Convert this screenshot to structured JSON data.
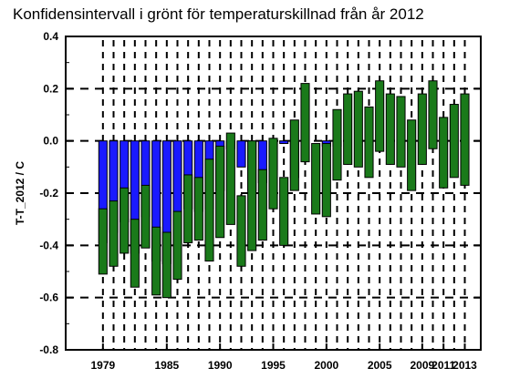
{
  "chart_data": {
    "type": "bar",
    "title": "Konfidensintervall i grönt för temperaturskillnad från år 2012",
    "xlabel": "",
    "ylabel": "T-T_2012 / C",
    "xlim": [
      1975.5,
      2014.5
    ],
    "ylim": [
      -0.8,
      0.4
    ],
    "yticks": [
      -0.8,
      -0.6,
      -0.4,
      -0.2,
      0.0,
      0.2,
      0.4
    ],
    "ytick_labels": [
      "-0.8",
      "-0.6",
      "-0.4",
      "-0.2",
      "0.0",
      "0.2",
      "0.4"
    ],
    "xticks": [
      1979,
      1985,
      1990,
      1995,
      2000,
      2005,
      2009,
      2011,
      2013
    ],
    "xtick_labels": [
      "1979",
      "1985",
      "1990",
      "1995",
      "2000",
      "2005",
      "2009",
      "2011",
      "2013"
    ],
    "grid": true,
    "colors": {
      "difference": "#1a1aff",
      "interval": "#1a7a1a",
      "edge": "#000000"
    },
    "series": [
      {
        "kind": "difference",
        "x": [
          1979,
          1980,
          1981,
          1982,
          1983,
          1984,
          1985,
          1986,
          1987,
          1988,
          1989,
          1990,
          1991,
          1992,
          1993,
          1994,
          1995,
          1996,
          1997,
          1998,
          1999,
          2000,
          2001,
          2002,
          2003,
          2004,
          2005,
          2006,
          2007,
          2008,
          2009,
          2010,
          2011,
          2012,
          2013
        ],
        "values": [
          -0.39,
          -0.35,
          -0.31,
          -0.43,
          -0.29,
          -0.46,
          -0.47,
          -0.4,
          -0.26,
          -0.27,
          -0.26,
          -0.19,
          -0.03,
          -0.1,
          -0.19,
          -0.16,
          -0.11,
          -0.01,
          -0.14,
          0.0,
          0.0,
          -0.02,
          -0.02,
          0.0,
          0.0,
          0.0,
          0.0,
          0.0,
          0.0,
          0.0,
          0.0,
          0.0,
          0.0,
          0.0,
          0.0
        ]
      },
      {
        "kind": "interval",
        "x": [
          1979,
          1980,
          1981,
          1982,
          1983,
          1984,
          1985,
          1986,
          1987,
          1988,
          1989,
          1990,
          1991,
          1992,
          1993,
          1994,
          1995,
          1996,
          1997,
          1998,
          1999,
          2000,
          2001,
          2002,
          2003,
          2004,
          2005,
          2006,
          2007,
          2008,
          2009,
          2010,
          2011,
          2012,
          2013
        ],
        "low": [
          -0.51,
          -0.48,
          -0.43,
          -0.56,
          -0.41,
          -0.59,
          -0.6,
          -0.53,
          -0.39,
          -0.38,
          -0.46,
          -0.37,
          -0.32,
          -0.48,
          -0.42,
          -0.38,
          -0.26,
          -0.4,
          -0.19,
          -0.08,
          -0.28,
          -0.29,
          -0.15,
          -0.09,
          -0.1,
          -0.14,
          -0.04,
          -0.09,
          -0.1,
          -0.19,
          -0.09,
          -0.03,
          -0.18,
          -0.14,
          -0.17
        ],
        "high": [
          -0.26,
          -0.23,
          -0.18,
          -0.3,
          -0.17,
          -0.33,
          -0.35,
          -0.27,
          -0.13,
          -0.14,
          -0.07,
          -0.02,
          0.03,
          -0.21,
          0.0,
          -0.11,
          0.01,
          -0.14,
          0.08,
          0.22,
          -0.01,
          -0.01,
          0.12,
          0.18,
          0.19,
          0.13,
          0.23,
          0.18,
          0.17,
          0.08,
          0.18,
          0.23,
          0.09,
          0.14,
          0.18
        ]
      }
    ]
  }
}
